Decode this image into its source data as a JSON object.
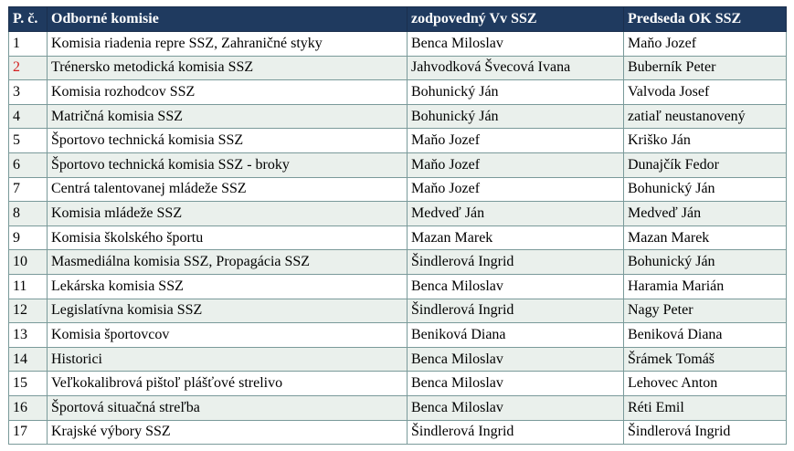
{
  "table": {
    "headers": [
      "P. č.",
      "Odborné komisie",
      "zodpovedný Vv SSZ",
      "Predseda OK SSZ"
    ],
    "rows": [
      {
        "no": "1",
        "commission": "Komisia riadenia repre SSZ, Zahraničné styky",
        "responsible": "Benca Miloslav",
        "chair": "Maňo Jozef"
      },
      {
        "no": "2",
        "commission": "Trénersko metodická  komisia SSZ",
        "responsible": "Jahvodková Švecová Ivana",
        "chair": "Buberník Peter"
      },
      {
        "no": "3",
        "commission": "Komisia rozhodcov SSZ",
        "responsible": "Bohunický Ján",
        "chair": "Valvoda Josef"
      },
      {
        "no": "4",
        "commission": "Matričná komisia SSZ",
        "responsible": "Bohunický Ján",
        "chair": "zatiaľ neustanovený"
      },
      {
        "no": "5",
        "commission": "Športovo technická komisia SSZ",
        "responsible": "Maňo Jozef",
        "chair": "Kriško Ján"
      },
      {
        "no": "6",
        "commission": "Športovo technická komisia SSZ - broky",
        "responsible": "Maňo Jozef",
        "chair": "Dunajčík Fedor"
      },
      {
        "no": "7",
        "commission": "Centrá talentovanej mládeže SSZ",
        "responsible": "Maňo Jozef",
        "chair": "Bohunický Ján"
      },
      {
        "no": "8",
        "commission": "Komisia mládeže SSZ",
        "responsible": "Medveď Ján",
        "chair": "Medveď Ján"
      },
      {
        "no": "9",
        "commission": "Komisia školského športu",
        "responsible": "Mazan Marek",
        "chair": "Mazan Marek"
      },
      {
        "no": "10",
        "commission": "Masmediálna komisia SSZ, Propagácia SSZ",
        "responsible": "Šindlerová Ingrid",
        "chair": "Bohunický Ján"
      },
      {
        "no": "11",
        "commission": "Lekárska komisia SSZ",
        "responsible": "Benca Miloslav",
        "chair": "Haramia Marián"
      },
      {
        "no": "12",
        "commission": "Legislatívna komisia SSZ",
        "responsible": "Šindlerová Ingrid",
        "chair": "Nagy Peter"
      },
      {
        "no": "13",
        "commission": "Komisia športovcov",
        "responsible": "Beniková Diana",
        "chair": "Beniková Diana"
      },
      {
        "no": "14",
        "commission": "Historici",
        "responsible": "Benca Miloslav",
        "chair": "Šrámek Tomáš"
      },
      {
        "no": "15",
        "commission": "Veľkokalibrová pištoľ plášťové strelivo",
        "responsible": "Benca Miloslav",
        "chair": "Lehovec Anton"
      },
      {
        "no": "16",
        "commission": "Športová situačná streľba",
        "responsible": "Benca Miloslav",
        "chair": "Réti Emil"
      },
      {
        "no": "17",
        "commission": "Krajské výbory SSZ",
        "responsible": "Šindlerová Ingrid",
        "chair": "Šindlerová Ingrid"
      }
    ],
    "colors": {
      "header_bg": "#1f3a5f",
      "header_text": "#ffffff",
      "row_stripe": "#eaf0ec",
      "highlight_number": "#d42020"
    },
    "highlighted_row_numbers": [
      "2"
    ]
  }
}
